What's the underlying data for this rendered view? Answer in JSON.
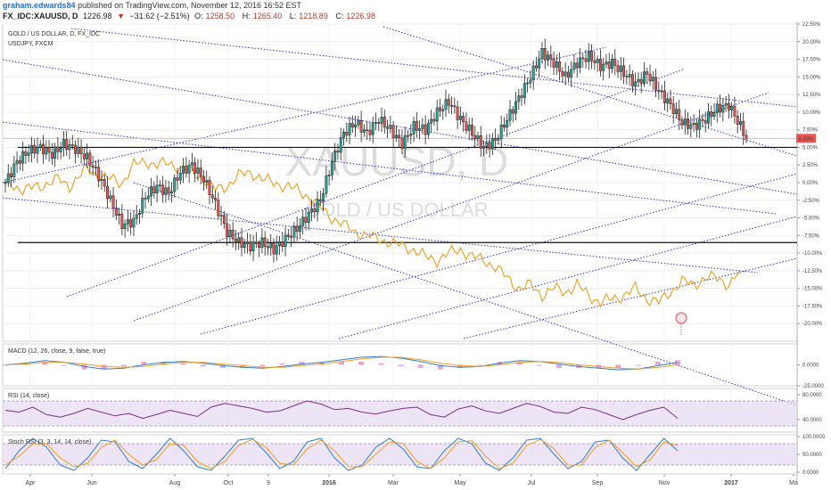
{
  "header": {
    "user": "graham.edwards84",
    "published": "published on TradingView.com, November 12, 2016 16:52 EST",
    "symbol": "FX_IDC:XAUUSD, D",
    "last": "1226.98",
    "change_arrow": "▼",
    "change": "−31.62 (−2.51%)",
    "open_label": "O:",
    "open": "1258.50",
    "high_label": "H:",
    "high": "1265.40",
    "low_label": "L:",
    "low": "1218.89",
    "close_label": "C:",
    "close": "1226.98"
  },
  "watermark": {
    "symbol": "XAUUSD, D",
    "name": "GOLD / US DOLLAR"
  },
  "colors": {
    "up": "#26a69a",
    "down": "#ef5350",
    "candle": "#222222",
    "overlay": "#f29d1c",
    "trendline": "#3333cc",
    "macd": "#2e7fd1",
    "signal": "#f29d1c",
    "hist_pos": "#e08cc4",
    "hist_neg": "#e08cc4",
    "rsi": "#7b2d8b",
    "stoch_k": "#2e7fd1",
    "stoch_d": "#f29d1c",
    "band": "#e6d8f2"
  },
  "chart_data": [
    {
      "type": "candlestick",
      "title": "GOLD / US DOLLAR, D, FX_IDC",
      "overlay_series": "USDJPY, FXCM",
      "y_unit": "percent",
      "ylim": [
        -22.5,
        22.5
      ],
      "y_ticks": [
        22.5,
        20,
        17.5,
        15,
        12.5,
        10,
        7.5,
        5,
        2.5,
        0,
        -2.5,
        -5,
        -7.5,
        -10,
        -12.5,
        -15,
        -17.5,
        -20
      ],
      "y_tick_labels": [
        "22.50%",
        "20.00%",
        "17.50%",
        "15.00%",
        "12.50%",
        "10.00%",
        "7.50%",
        "5.00%",
        "2.50%",
        "0.00%",
        "-2.50%",
        "-5.00%",
        "-7.50%",
        "-10.00%",
        "-12.50%",
        "-15.00%",
        "-17.50%",
        "-20.00%"
      ],
      "last_value_label": "6.28%",
      "x_tick_labels": [
        "Apr",
        "Jun",
        "Aug",
        "Oct",
        "9",
        "2016",
        "Mar",
        "May",
        "Jul",
        "Sep",
        "Nov",
        "2017",
        "Ma"
      ],
      "horizontal_lines": [
        5.0,
        -8.5
      ],
      "gold_path": [
        [
          0,
          0.0
        ],
        [
          4,
          3.0
        ],
        [
          8,
          4.5
        ],
        [
          12,
          5.0
        ],
        [
          16,
          4.0
        ],
        [
          20,
          5.5
        ],
        [
          24,
          4.8
        ],
        [
          28,
          3.5
        ],
        [
          32,
          1.0
        ],
        [
          36,
          -2.5
        ],
        [
          40,
          -6.0
        ],
        [
          44,
          -5.5
        ],
        [
          48,
          -2.0
        ],
        [
          52,
          -0.5
        ],
        [
          56,
          -1.5
        ],
        [
          60,
          1.5
        ],
        [
          64,
          2.5
        ],
        [
          68,
          0.5
        ],
        [
          72,
          -3.0
        ],
        [
          76,
          -7.0
        ],
        [
          80,
          -8.5
        ],
        [
          84,
          -9.0
        ],
        [
          88,
          -8.5
        ],
        [
          92,
          -9.5
        ],
        [
          96,
          -8.0
        ],
        [
          100,
          -6.5
        ],
        [
          104,
          -4.5
        ],
        [
          108,
          -2.5
        ],
        [
          112,
          3.0
        ],
        [
          116,
          7.0
        ],
        [
          120,
          8.5
        ],
        [
          124,
          7.0
        ],
        [
          128,
          9.0
        ],
        [
          132,
          7.5
        ],
        [
          136,
          5.5
        ],
        [
          140,
          8.0
        ],
        [
          144,
          7.5
        ],
        [
          148,
          10.0
        ],
        [
          152,
          11.5
        ],
        [
          156,
          9.0
        ],
        [
          160,
          7.0
        ],
        [
          164,
          5.0
        ],
        [
          168,
          6.0
        ],
        [
          172,
          9.0
        ],
        [
          176,
          12.0
        ],
        [
          180,
          15.0
        ],
        [
          184,
          18.5
        ],
        [
          188,
          17.0
        ],
        [
          192,
          15.0
        ],
        [
          196,
          17.0
        ],
        [
          200,
          18.0
        ],
        [
          204,
          16.5
        ],
        [
          208,
          17.0
        ],
        [
          212,
          15.5
        ],
        [
          216,
          14.0
        ],
        [
          220,
          15.5
        ],
        [
          224,
          13.0
        ],
        [
          228,
          11.0
        ],
        [
          232,
          8.5
        ],
        [
          236,
          8.0
        ],
        [
          240,
          9.0
        ],
        [
          244,
          10.5
        ],
        [
          248,
          11.0
        ],
        [
          252,
          8.0
        ],
        [
          254,
          6.3
        ]
      ],
      "usdjpy_path": [
        [
          0,
          0.0
        ],
        [
          6,
          -1.0
        ],
        [
          12,
          -0.5
        ],
        [
          18,
          0.5
        ],
        [
          22,
          -0.5
        ],
        [
          28,
          2.0
        ],
        [
          32,
          1.0
        ],
        [
          36,
          0.5
        ],
        [
          40,
          0.0
        ],
        [
          44,
          2.5
        ],
        [
          48,
          3.0
        ],
        [
          52,
          2.5
        ],
        [
          56,
          2.8
        ],
        [
          60,
          2.0
        ],
        [
          64,
          1.5
        ],
        [
          68,
          0.5
        ],
        [
          72,
          -1.0
        ],
        [
          76,
          -0.5
        ],
        [
          80,
          1.0
        ],
        [
          84,
          1.5
        ],
        [
          88,
          0.5
        ],
        [
          92,
          0.0
        ],
        [
          96,
          -0.5
        ],
        [
          100,
          -1.0
        ],
        [
          104,
          -2.0
        ],
        [
          108,
          -3.5
        ],
        [
          112,
          -5.0
        ],
        [
          116,
          -6.0
        ],
        [
          120,
          -7.0
        ],
        [
          124,
          -7.5
        ],
        [
          128,
          -8.0
        ],
        [
          132,
          -8.5
        ],
        [
          136,
          -9.0
        ],
        [
          140,
          -9.5
        ],
        [
          144,
          -10.5
        ],
        [
          148,
          -11.0
        ],
        [
          152,
          -10.0
        ],
        [
          156,
          -9.5
        ],
        [
          160,
          -10.5
        ],
        [
          164,
          -11.0
        ],
        [
          168,
          -12.0
        ],
        [
          172,
          -13.5
        ],
        [
          176,
          -15.0
        ],
        [
          180,
          -14.5
        ],
        [
          184,
          -16.0
        ],
        [
          188,
          -15.0
        ],
        [
          192,
          -15.5
        ],
        [
          196,
          -14.5
        ],
        [
          200,
          -16.0
        ],
        [
          204,
          -17.0
        ],
        [
          208,
          -16.5
        ],
        [
          212,
          -16.0
        ],
        [
          216,
          -15.0
        ],
        [
          220,
          -16.5
        ],
        [
          224,
          -17.0
        ],
        [
          228,
          -15.5
        ],
        [
          232,
          -14.0
        ],
        [
          236,
          -14.5
        ],
        [
          240,
          -13.5
        ],
        [
          244,
          -13.5
        ],
        [
          248,
          -14.5
        ],
        [
          252,
          -12.5
        ]
      ]
    },
    {
      "type": "line",
      "title": "MACD (12, 26, close, 9, false, true)",
      "ylim": [
        -25,
        25
      ],
      "y_ticks": [
        0,
        -25
      ],
      "y_tick_labels": [
        "0.0000",
        "-25.0000"
      ],
      "series": [
        {
          "name": "MACD",
          "values": [
            0,
            2,
            5,
            3,
            -2,
            -5,
            -4,
            0,
            3,
            4,
            2,
            -1,
            -3,
            -4,
            -2,
            1,
            3,
            6,
            9,
            10,
            8,
            4,
            -1,
            -3,
            -2,
            2,
            5,
            4,
            1,
            -2,
            -4,
            -6,
            -5,
            -1,
            3
          ]
        },
        {
          "name": "Signal",
          "values": [
            0,
            1,
            3,
            3,
            1,
            -2,
            -3,
            -2,
            1,
            3,
            3,
            1,
            -1,
            -3,
            -3,
            -1,
            1,
            4,
            7,
            9,
            9,
            6,
            2,
            -1,
            -2,
            0,
            3,
            4,
            3,
            0,
            -2,
            -4,
            -5,
            -3,
            0
          ]
        }
      ]
    },
    {
      "type": "line",
      "title": "RSI (14, close)",
      "ylim": [
        20,
        90
      ],
      "y_ticks": [
        80,
        40
      ],
      "y_tick_labels": [
        "80.0000",
        "40.0000"
      ],
      "band": [
        30,
        70
      ],
      "series": [
        {
          "name": "RSI",
          "values": [
            55,
            52,
            60,
            48,
            44,
            50,
            58,
            52,
            46,
            50,
            42,
            48,
            55,
            50,
            45,
            60,
            66,
            62,
            58,
            52,
            54,
            62,
            70,
            65,
            56,
            58,
            52,
            49,
            54,
            58,
            60,
            48,
            44,
            57,
            62,
            54,
            50,
            58,
            66,
            61,
            52,
            50,
            60,
            56,
            48,
            40,
            48,
            55,
            60,
            42
          ]
        }
      ]
    },
    {
      "type": "line",
      "title": "Stoch RSI (3, 3, 14, 14, close)",
      "ylim": [
        0,
        100
      ],
      "y_ticks": [
        100,
        50,
        0
      ],
      "y_tick_labels": [
        "100.0000",
        "50.0000",
        "0.0000"
      ],
      "band": [
        20,
        80
      ],
      "series": [
        {
          "name": "K",
          "values": [
            10,
            60,
            95,
            70,
            20,
            5,
            40,
            90,
            85,
            30,
            10,
            50,
            95,
            60,
            15,
            5,
            45,
            90,
            95,
            55,
            10,
            30,
            85,
            95,
            40,
            5,
            20,
            70,
            95,
            65,
            15,
            10,
            60,
            95,
            80,
            25,
            5,
            40,
            90,
            95,
            50,
            10,
            30,
            85,
            90,
            40,
            5,
            50,
            95,
            60
          ]
        },
        {
          "name": "D",
          "values": [
            20,
            45,
            80,
            80,
            40,
            15,
            25,
            70,
            90,
            50,
            20,
            35,
            80,
            75,
            30,
            10,
            30,
            75,
            92,
            70,
            25,
            20,
            65,
            90,
            60,
            15,
            15,
            50,
            85,
            80,
            30,
            10,
            40,
            85,
            88,
            45,
            10,
            25,
            75,
            92,
            65,
            20,
            20,
            70,
            90,
            55,
            15,
            35,
            85,
            75
          ]
        }
      ]
    }
  ]
}
